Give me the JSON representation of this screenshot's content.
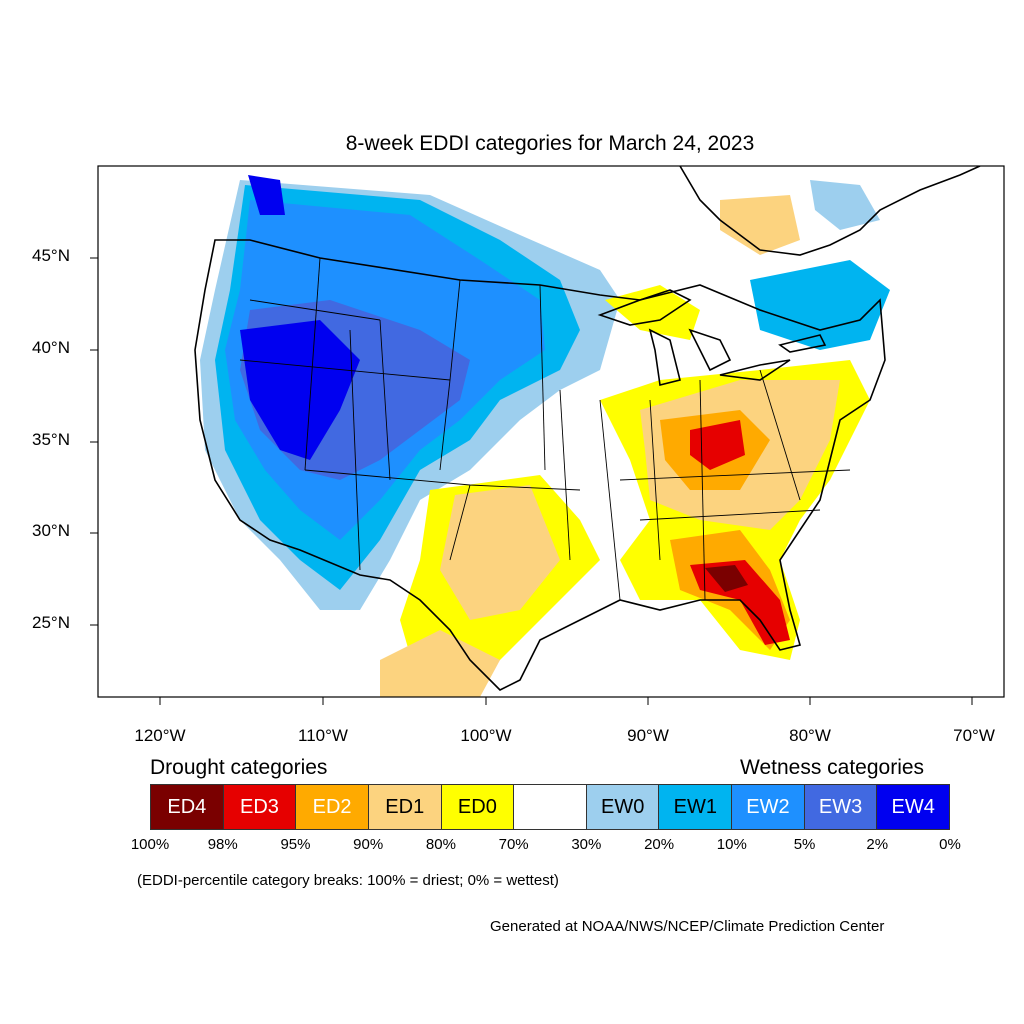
{
  "title": "8-week EDDI categories for March 24, 2023",
  "y_labels": [
    "45°N",
    "40°N",
    "35°N",
    "30°N",
    "25°N"
  ],
  "x_labels": [
    "120°W",
    "110°W",
    "100°W",
    "90°W",
    "80°W",
    "70°W"
  ],
  "legend": {
    "drought_heading": "Drought categories",
    "wetness_heading": "Wetness categories",
    "categories": [
      {
        "label": "ED4",
        "color": "#7a0000",
        "text_color": "#ffffff"
      },
      {
        "label": "ED3",
        "color": "#e60000",
        "text_color": "#ffffff"
      },
      {
        "label": "ED2",
        "color": "#ffaa00",
        "text_color": "#ffffff"
      },
      {
        "label": "ED1",
        "color": "#fcd37f",
        "text_color": "#000000"
      },
      {
        "label": "ED0",
        "color": "#ffff00",
        "text_color": "#000000"
      },
      {
        "label": "",
        "color": "#ffffff",
        "text_color": "#000000"
      },
      {
        "label": "EW0",
        "color": "#9dcfee",
        "text_color": "#000000"
      },
      {
        "label": "EW1",
        "color": "#00b4f0",
        "text_color": "#000000"
      },
      {
        "label": "EW2",
        "color": "#1e90ff",
        "text_color": "#ffffff"
      },
      {
        "label": "EW3",
        "color": "#4169e1",
        "text_color": "#ffffff"
      },
      {
        "label": "EW4",
        "color": "#0000f0",
        "text_color": "#ffffff"
      }
    ],
    "percentiles": [
      "100%",
      "98%",
      "95%",
      "90%",
      "80%",
      "70%",
      "30%",
      "20%",
      "10%",
      "5%",
      "2%",
      "0%"
    ]
  },
  "note": "(EDDI-percentile category breaks: 100% = driest; 0% = wettest)",
  "credit": "Generated at NOAA/NWS/NCEP/Climate Prediction Center"
}
